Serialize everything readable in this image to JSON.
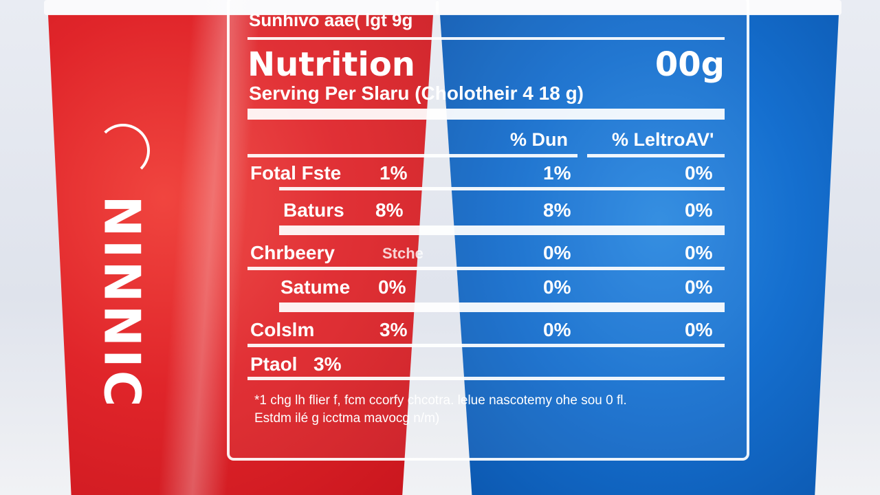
{
  "colors": {
    "red_cup": "#e0252a",
    "blue_cup": "#156fcf",
    "label_ink": "#ffffff"
  },
  "cup_brand": "NINNIC",
  "label": {
    "top_text": "Sunhivo aae( lgt 9g",
    "title": "Nutrition",
    "title_right": "00g",
    "serving": "Serving Per Slaru (Cholotheir 4 18 g)",
    "col1_header": "% Dun",
    "col2_header": "% LeltroAV'",
    "rows": [
      {
        "label": "Fotal Fste",
        "pct": "1%",
        "col1": "1%",
        "col2": "0%"
      },
      {
        "label": "Baturs",
        "pct": "8%",
        "col1": "8%",
        "col2": "0%"
      },
      {
        "label": "Chrbeery",
        "pct": "Stche",
        "col1": "0%",
        "col2": "0%"
      },
      {
        "label": "Satume",
        "pct": "0%",
        "col1": "0%",
        "col2": "0%"
      },
      {
        "label": "Colslm",
        "pct": "3%",
        "col1": "0%",
        "col2": "0%"
      },
      {
        "label": "Ptaol",
        "pct": "3%",
        "col1": "",
        "col2": ""
      }
    ],
    "footnote_1": "*1 chg lh flier f, fcm ccorfy chcotra. lelue nascotemy ohe sou 0 fl.",
    "footnote_2": "Estdm ilé g icctma mavocg n/m)"
  }
}
